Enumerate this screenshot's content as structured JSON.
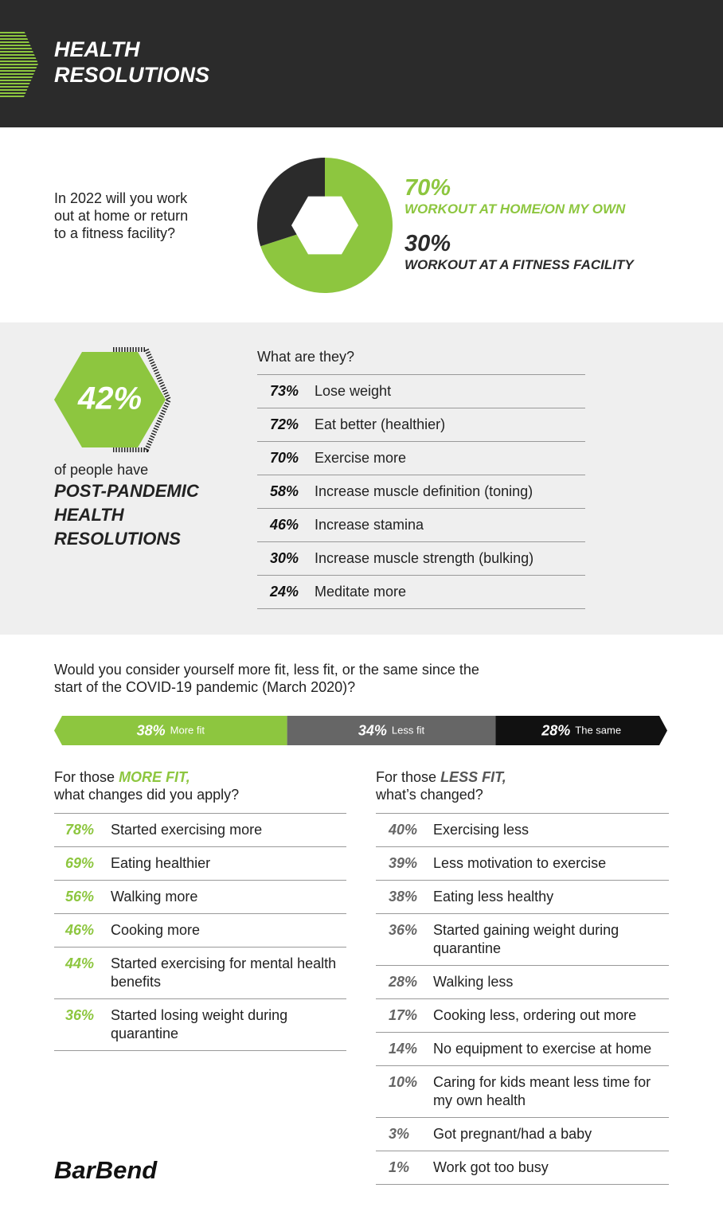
{
  "header": {
    "title": "HEALTH RESOLUTIONS"
  },
  "workout": {
    "question": "In 2022 will you work out at home or return to a fitness facility?",
    "chart": {
      "type": "pie",
      "values": [
        70,
        30
      ],
      "value_labels": [
        "70%",
        "30%"
      ],
      "categories": [
        "WORKOUT AT HOME/ON MY OWN",
        "WORKOUT AT A FITNESS FACILITY"
      ],
      "colors": [
        "#8dc63f",
        "#2b2b2b"
      ]
    }
  },
  "resolutions": {
    "stat": "42%",
    "caption": "of people have",
    "emphasis": "POST-PANDEMIC HEALTH RESOLUTIONS",
    "question": "What are they?",
    "items": [
      {
        "pct": "73%",
        "text": "Lose weight"
      },
      {
        "pct": "72%",
        "text": "Eat better (healthier)"
      },
      {
        "pct": "70%",
        "text": "Exercise more"
      },
      {
        "pct": "58%",
        "text": "Increase muscle definition (toning)"
      },
      {
        "pct": "46%",
        "text": "Increase stamina"
      },
      {
        "pct": "30%",
        "text": "Increase muscle strength (bulking)"
      },
      {
        "pct": "24%",
        "text": "Meditate more"
      }
    ]
  },
  "fitness": {
    "question": "Would you consider yourself more fit, less fit, or the same since the start of the COVID-19 pandemic (March 2020)?",
    "chart": {
      "type": "bar",
      "values": [
        38,
        34,
        28
      ],
      "value_labels": [
        "38%",
        "34%",
        "28%"
      ],
      "categories": [
        "More fit",
        "Less fit",
        "The same"
      ],
      "colors": [
        "#8dc63f",
        "#666666",
        "#111111"
      ]
    },
    "more_fit": {
      "lead": "For those",
      "emphasis": "MORE FIT,",
      "sub": "what changes did you apply?",
      "items": [
        {
          "pct": "78%",
          "text": "Started exercising more"
        },
        {
          "pct": "69%",
          "text": "Eating healthier"
        },
        {
          "pct": "56%",
          "text": "Walking more"
        },
        {
          "pct": "46%",
          "text": "Cooking more"
        },
        {
          "pct": "44%",
          "text": "Started exercising for mental health benefits"
        },
        {
          "pct": "36%",
          "text": "Started losing weight during quarantine"
        }
      ]
    },
    "less_fit": {
      "lead": "For those",
      "emphasis": "LESS FIT,",
      "sub": "what’s changed?",
      "items": [
        {
          "pct": "40%",
          "text": "Exercising less"
        },
        {
          "pct": "39%",
          "text": "Less motivation to exercise"
        },
        {
          "pct": "38%",
          "text": "Eating less healthy"
        },
        {
          "pct": "36%",
          "text": "Started gaining weight during quarantine"
        },
        {
          "pct": "28%",
          "text": "Walking less"
        },
        {
          "pct": "17%",
          "text": "Cooking less, ordering out more"
        },
        {
          "pct": "14%",
          "text": "No equipment to exercise at home"
        },
        {
          "pct": "10%",
          "text": "Caring for kids meant less time for my own health"
        },
        {
          "pct": "3%",
          "text": "Got pregnant/had a baby"
        },
        {
          "pct": "1%",
          "text": "Work got too busy"
        }
      ]
    }
  },
  "logo": "BarBend"
}
